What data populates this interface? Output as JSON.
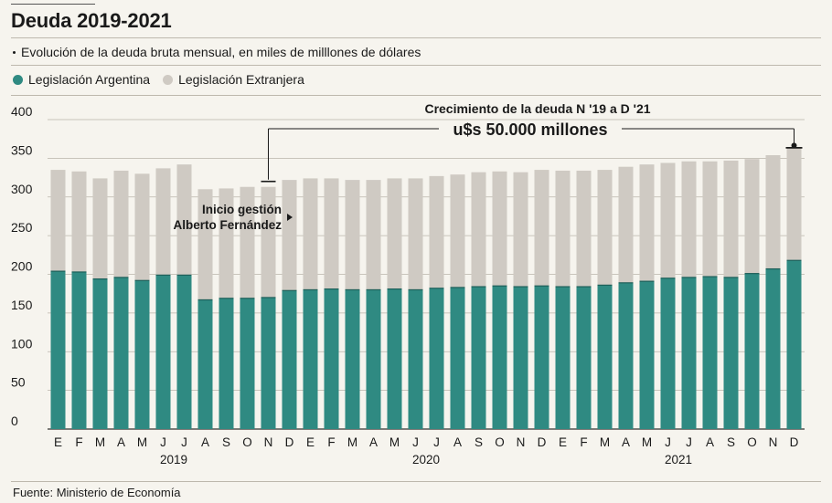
{
  "header": {
    "title": "Deuda 2019-2021",
    "subtitle": "Evolución de la deuda bruta mensual, en miles de milllones de dólares"
  },
  "legend": [
    {
      "label": "Legislación Argentina",
      "color": "#2f8a82"
    },
    {
      "label": "Legislación Extranjera",
      "color": "#cfcac3"
    }
  ],
  "footer": {
    "source": "Fuente: Ministerio de Economía"
  },
  "annotations": {
    "growth_title": "Crecimiento de la deuda N '19 a D '21",
    "growth_value": "u$s 50.000 millones",
    "gestion_line1": "Inicio gestión",
    "gestion_line2": "Alberto Fernández"
  },
  "chart_data": {
    "type": "bar",
    "stacked": true,
    "title": "Deuda 2019-2021",
    "ylabel": "",
    "xlabel": "",
    "ylim": [
      0,
      400
    ],
    "yticks": [
      0,
      50,
      100,
      150,
      200,
      250,
      300,
      350,
      400
    ],
    "categories": [
      "E",
      "F",
      "M",
      "A",
      "M",
      "J",
      "J",
      "A",
      "S",
      "O",
      "N",
      "D",
      "E",
      "F",
      "M",
      "A",
      "M",
      "J",
      "J",
      "A",
      "S",
      "O",
      "N",
      "D",
      "E",
      "F",
      "M",
      "A",
      "M",
      "J",
      "J",
      "A",
      "S",
      "O",
      "N",
      "D"
    ],
    "years": [
      {
        "label": "2019",
        "start": 0,
        "end": 11
      },
      {
        "label": "2020",
        "start": 12,
        "end": 23
      },
      {
        "label": "2021",
        "start": 24,
        "end": 35
      }
    ],
    "series": [
      {
        "name": "Legislación Argentina",
        "values": [
          204,
          203,
          194,
          196,
          192,
          199,
          199,
          167,
          169,
          169,
          170,
          179,
          180,
          181,
          180,
          180,
          181,
          180,
          182,
          183,
          184,
          185,
          184,
          185,
          184,
          184,
          186,
          189,
          191,
          195,
          196,
          197,
          196,
          201,
          207,
          218
        ]
      },
      {
        "name": "Legislación Extranjera",
        "values": [
          131,
          130,
          130,
          138,
          138,
          138,
          143,
          143,
          142,
          144,
          143,
          143,
          144,
          143,
          142,
          142,
          143,
          144,
          145,
          146,
          148,
          148,
          148,
          150,
          150,
          150,
          149,
          150,
          151,
          149,
          150,
          149,
          151,
          148,
          147,
          145
        ]
      }
    ],
    "totals": [
      335,
      333,
      324,
      334,
      330,
      337,
      342,
      310,
      311,
      313,
      313,
      322,
      324,
      324,
      322,
      322,
      324,
      324,
      327,
      329,
      332,
      333,
      332,
      335,
      334,
      334,
      335,
      339,
      342,
      344,
      346,
      346,
      347,
      349,
      354,
      363
    ]
  }
}
